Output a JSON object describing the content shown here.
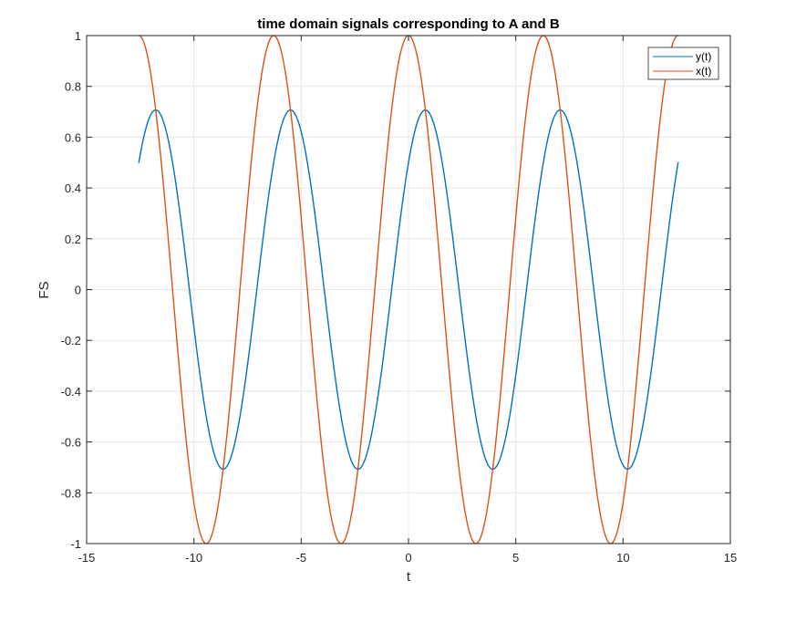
{
  "toolbar": {
    "icons": [
      "brush-icon",
      "datatip-icon",
      "pan-icon",
      "zoom-in-icon",
      "zoom-out-icon",
      "home-icon"
    ]
  },
  "colors": {
    "series_y": "#0072BD",
    "series_x": "#D95319",
    "grid": "#e6e6e6",
    "axis": "#262626"
  },
  "chart_data": {
    "type": "line",
    "title": "time domain signals corresponding to A and B",
    "xlabel": "t",
    "ylabel": "FS",
    "xlim": [
      -15,
      15
    ],
    "ylim": [
      -1,
      1
    ],
    "xticks": [
      -15,
      -10,
      -5,
      0,
      5,
      10,
      15
    ],
    "xtick_labels": [
      "-15",
      "-10",
      "-5",
      "0",
      "5",
      "10",
      "15"
    ],
    "yticks": [
      -1,
      -0.8,
      -0.6,
      -0.4,
      -0.2,
      0,
      0.2,
      0.4,
      0.6,
      0.8,
      1
    ],
    "ytick_labels": [
      "-1",
      "-0.8",
      "-0.6",
      "-0.4",
      "-0.2",
      "0",
      "0.2",
      "0.4",
      "0.6",
      "0.8",
      "1"
    ],
    "grid": true,
    "legend_position": "top-right",
    "series": [
      {
        "name": "y(t)",
        "color": "#0072BD",
        "x_range": [
          -12.57,
          12.57
        ],
        "formula": "0.7071*cos(t - 0.7854)",
        "amplitude": 0.707,
        "period": 6.283
      },
      {
        "name": "x(t)",
        "color": "#D95319",
        "x_range": [
          -12.57,
          12.57
        ],
        "formula": "cos(t)",
        "amplitude": 1,
        "period": 6.283
      }
    ]
  }
}
